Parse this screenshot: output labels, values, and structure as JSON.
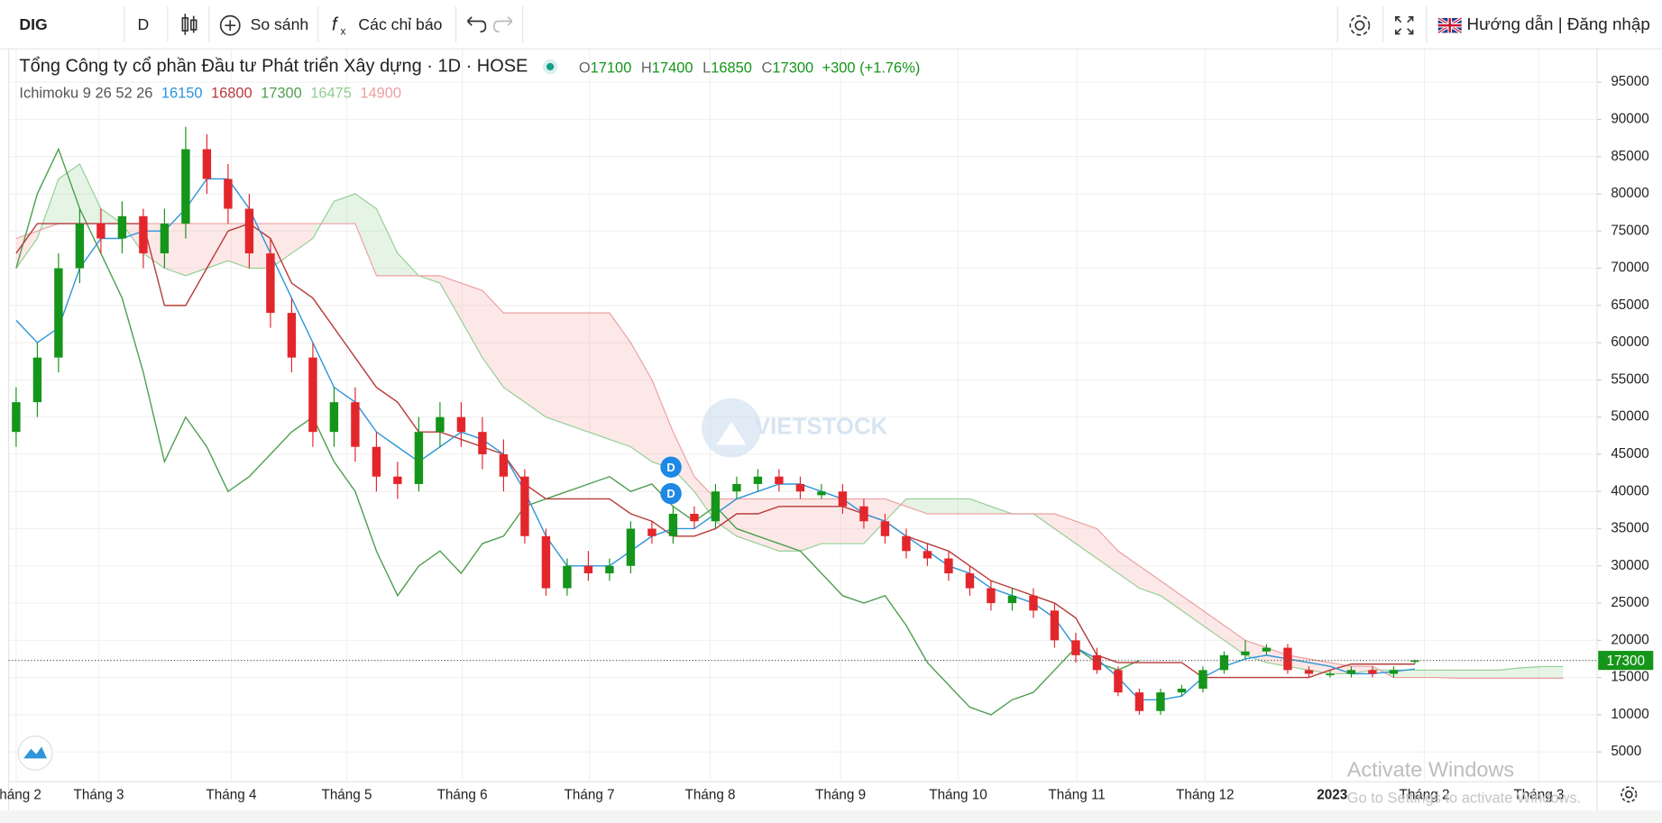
{
  "toolbar": {
    "symbol": "DIG",
    "interval": "D",
    "compare": "So sánh",
    "indicators": "Các chỉ báo",
    "auth": "Hướng dẫn | Đăng nhập"
  },
  "chart_data": {
    "type": "candlestick",
    "title": "Tổng Công ty cổ phần Đầu tư Phát triển Xây dựng · 1D · HOSE",
    "ohlc": {
      "labels": [
        "O",
        "H",
        "L",
        "C"
      ],
      "values": [
        17100,
        17400,
        16850,
        17300
      ]
    },
    "change_label": "+300 (+1.76%)",
    "indicator": {
      "name": "Ichimoku 9 26 52 26",
      "values": [
        16150,
        16800,
        17300,
        16475,
        14900
      ]
    },
    "up_color": "#15951a",
    "down_color": "#e3262b",
    "flat_color": "#888888",
    "candles": [
      [
        48000,
        54000,
        46000,
        52000
      ],
      [
        52000,
        60000,
        50000,
        58000
      ],
      [
        58000,
        72000,
        56000,
        70000
      ],
      [
        70000,
        78000,
        68000,
        76000
      ],
      [
        76000,
        78000,
        72000,
        74000
      ],
      [
        74000,
        79000,
        72000,
        77000
      ],
      [
        77000,
        78000,
        70000,
        72000
      ],
      [
        72000,
        78000,
        70000,
        76000
      ],
      [
        76000,
        89000,
        74000,
        86000
      ],
      [
        86000,
        88000,
        80000,
        82000
      ],
      [
        82000,
        84000,
        76000,
        78000
      ],
      [
        78000,
        80000,
        70000,
        72000
      ],
      [
        72000,
        74000,
        62000,
        64000
      ],
      [
        64000,
        66000,
        56000,
        58000
      ],
      [
        58000,
        60000,
        46000,
        48000
      ],
      [
        48000,
        54000,
        46000,
        52000
      ],
      [
        52000,
        54000,
        44000,
        46000
      ],
      [
        46000,
        48000,
        40000,
        42000
      ],
      [
        42000,
        44000,
        39000,
        41000
      ],
      [
        41000,
        50000,
        40000,
        48000
      ],
      [
        48000,
        52000,
        46000,
        50000
      ],
      [
        50000,
        52000,
        46000,
        48000
      ],
      [
        48000,
        50000,
        43000,
        45000
      ],
      [
        45000,
        47000,
        40000,
        42000
      ],
      [
        42000,
        43000,
        33000,
        34000
      ],
      [
        34000,
        35000,
        26000,
        27000
      ],
      [
        27000,
        31000,
        26000,
        30000
      ],
      [
        30000,
        32000,
        28000,
        29000
      ],
      [
        29000,
        31000,
        28000,
        30000
      ],
      [
        30000,
        36000,
        29000,
        35000
      ],
      [
        35000,
        36000,
        33000,
        34000
      ],
      [
        34000,
        38000,
        33000,
        37000
      ],
      [
        37000,
        38000,
        35000,
        36000
      ],
      [
        36000,
        41000,
        35000,
        40000
      ],
      [
        40000,
        42000,
        39000,
        41000
      ],
      [
        41000,
        43000,
        40000,
        42000
      ],
      [
        42000,
        43000,
        40000,
        41000
      ],
      [
        41000,
        42000,
        39000,
        40000
      ],
      [
        39500,
        41000,
        39000,
        40000
      ],
      [
        40000,
        41000,
        37000,
        38000
      ],
      [
        38000,
        39000,
        35000,
        36000
      ],
      [
        36000,
        37000,
        33000,
        34000
      ],
      [
        34000,
        35000,
        31000,
        32000
      ],
      [
        32000,
        33000,
        30000,
        31000
      ],
      [
        31000,
        32000,
        28000,
        29000
      ],
      [
        29000,
        30000,
        26000,
        27000
      ],
      [
        27000,
        28000,
        24000,
        25000
      ],
      [
        25000,
        27000,
        24000,
        26000
      ],
      [
        26000,
        27000,
        23000,
        24000
      ],
      [
        24000,
        25000,
        19000,
        20000
      ],
      [
        20000,
        21000,
        17000,
        18000
      ],
      [
        18000,
        19000,
        15500,
        16000
      ],
      [
        16000,
        16500,
        12500,
        13000
      ],
      [
        13000,
        13500,
        10000,
        10500
      ],
      [
        10500,
        13500,
        10000,
        13000
      ],
      [
        13000,
        14000,
        12500,
        13500
      ],
      [
        13500,
        16500,
        13000,
        16000
      ],
      [
        16000,
        18500,
        15500,
        18000
      ],
      [
        18000,
        20000,
        17500,
        18500
      ],
      [
        18500,
        19500,
        18000,
        19000
      ],
      [
        19000,
        19500,
        15500,
        16000
      ],
      [
        16000,
        16500,
        15000,
        15500
      ],
      [
        15300,
        16000,
        15000,
        15500
      ],
      [
        15500,
        16500,
        15000,
        16000
      ],
      [
        16000,
        16500,
        15000,
        15500
      ],
      [
        15500,
        16500,
        15000,
        16000
      ],
      [
        17100,
        17400,
        16850,
        17300
      ]
    ],
    "ichimoku": {
      "tenkan": {
        "color": "#2e95d8",
        "values": [
          63000,
          60000,
          62000,
          70000,
          74000,
          74000,
          75000,
          75000,
          78000,
          82000,
          82000,
          78000,
          72000,
          66000,
          60000,
          54000,
          52000,
          48000,
          46000,
          44000,
          46000,
          48000,
          47000,
          45000,
          40000,
          34000,
          30000,
          30000,
          30000,
          32000,
          34000,
          35000,
          35000,
          37000,
          39000,
          40000,
          41000,
          41000,
          40000,
          39000,
          37000,
          36000,
          34000,
          32000,
          30000,
          29000,
          27000,
          26000,
          25000,
          23000,
          19000,
          17500,
          15000,
          12000,
          12000,
          12500,
          15000,
          16500,
          17500,
          18000,
          17500,
          17000,
          16500,
          15500,
          15500,
          15800,
          16150
        ]
      },
      "kijun": {
        "color": "#b83b3b",
        "values": [
          72000,
          76000,
          76000,
          76000,
          76000,
          76000,
          76000,
          65000,
          65000,
          70000,
          75000,
          76000,
          74000,
          68000,
          66000,
          62000,
          58000,
          54000,
          52000,
          48000,
          48000,
          47000,
          46000,
          45000,
          41000,
          39000,
          39000,
          39000,
          39000,
          37000,
          36000,
          34000,
          34000,
          35000,
          37000,
          37000,
          38000,
          38000,
          38000,
          38000,
          37000,
          36000,
          34000,
          33000,
          32000,
          30000,
          28000,
          27000,
          26000,
          25000,
          23000,
          18000,
          17000,
          17000,
          17000,
          17000,
          15000,
          15000,
          15000,
          15000,
          15000,
          15000,
          16000,
          16800,
          16800,
          16800,
          16800
        ]
      },
      "chikou": {
        "color": "#4f9f4f",
        "values": [
          70000,
          80000,
          86000,
          78000,
          72000,
          66000,
          56000,
          44000,
          50000,
          46000,
          40000,
          42000,
          45000,
          48000,
          50000,
          44000,
          40000,
          32000,
          26000,
          30000,
          32000,
          29000,
          33000,
          34000,
          38000,
          39000,
          40000,
          41000,
          42000,
          40000,
          41000,
          38000,
          36000,
          38000,
          35000,
          34000,
          33000,
          32000,
          29000,
          26000,
          25000,
          26000,
          22000,
          17000,
          14000,
          11000,
          10000,
          12000,
          13000,
          16000,
          19000,
          17000,
          16000,
          17300
        ]
      },
      "span_a": {
        "color": "#93cf93",
        "values": [
          70000,
          74000,
          82000,
          84000,
          78000,
          76000,
          72000,
          70000,
          69000,
          70000,
          71000,
          70000,
          70000,
          72000,
          74000,
          79000,
          80000,
          78000,
          72000,
          69000,
          68000,
          63000,
          58000,
          54000,
          52000,
          50000,
          49000,
          48000,
          47000,
          46000,
          44000,
          43000,
          40000,
          36000,
          34000,
          33000,
          32000,
          32000,
          33000,
          33000,
          33000,
          36000,
          39000,
          39000,
          39000,
          39000,
          38000,
          37000,
          37000,
          35000,
          33000,
          31000,
          29000,
          27000,
          26000,
          24000,
          22000,
          20000,
          18000,
          17000,
          16500,
          16000,
          15500,
          15500,
          16000,
          16000,
          16000,
          16000,
          16000,
          16000,
          16000,
          16300,
          16475,
          16475
        ]
      },
      "span_b": {
        "color": "#eba0a0",
        "values": [
          74000,
          75000,
          76000,
          76000,
          76000,
          76000,
          76000,
          76000,
          76000,
          76000,
          76000,
          76000,
          76000,
          76000,
          76000,
          76000,
          76000,
          69000,
          69000,
          69000,
          69000,
          68000,
          67000,
          64000,
          64000,
          64000,
          64000,
          64000,
          64000,
          60000,
          55000,
          48000,
          42000,
          39000,
          39000,
          39000,
          39000,
          39000,
          39000,
          39000,
          39000,
          39000,
          38000,
          37000,
          37000,
          37000,
          37000,
          37000,
          37000,
          37000,
          36000,
          35000,
          32000,
          30000,
          28000,
          26000,
          24000,
          22000,
          20000,
          19000,
          18000,
          17500,
          17000,
          16500,
          16500,
          15000,
          15000,
          15000,
          14900,
          14900,
          14900,
          14900,
          14900,
          14900
        ]
      },
      "cloud_up": "rgba(140,205,140,0.22)",
      "cloud_down": "rgba(248,150,150,0.22)"
    },
    "events": [
      "D",
      "D"
    ],
    "xlim": [
      -0.35,
      74.6
    ],
    "xticks": [
      {
        "value": 0,
        "label": "Tháng 2"
      },
      {
        "value": 3.9,
        "label": "Tháng 3"
      },
      {
        "value": 10.15,
        "label": "Tháng 4"
      },
      {
        "value": 15.6,
        "label": "Tháng 5"
      },
      {
        "value": 21.05,
        "label": "Tháng 6"
      },
      {
        "value": 27.05,
        "label": "Tháng 7"
      },
      {
        "value": 32.75,
        "label": "Tháng 8"
      },
      {
        "value": 38.9,
        "label": "Tháng 9"
      },
      {
        "value": 44.45,
        "label": "Tháng 10"
      },
      {
        "value": 50.05,
        "label": "Tháng 11"
      },
      {
        "value": 56.1,
        "label": "Tháng 12"
      },
      {
        "value": 62.1,
        "label": "2023"
      },
      {
        "value": 66.45,
        "label": "Tháng 2"
      },
      {
        "value": 71.85,
        "label": "Tháng 3"
      }
    ],
    "ylim": [
      1000,
      99500
    ],
    "yticks": [
      5000,
      10000,
      15000,
      20000,
      25000,
      30000,
      35000,
      40000,
      45000,
      50000,
      55000,
      60000,
      65000,
      70000,
      75000,
      80000,
      85000,
      90000,
      95000
    ],
    "grid": true,
    "watermark": "VIETSTOCK"
  },
  "os_notice": {
    "title": "Activate Windows",
    "subtitle": "Go to Settings to activate Windows."
  }
}
